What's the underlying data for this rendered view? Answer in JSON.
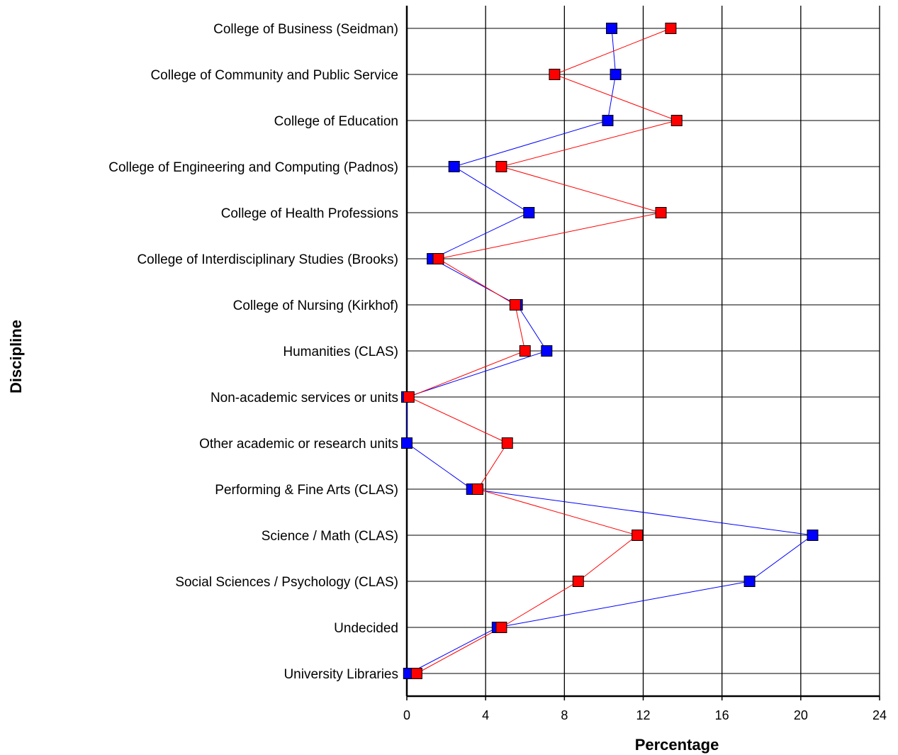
{
  "chart_data": {
    "type": "line",
    "orientation": "horizontal",
    "title": "",
    "xlabel": "Percentage",
    "ylabel": "Discipline",
    "xlim": [
      0,
      24
    ],
    "xticks": [
      0,
      4,
      8,
      12,
      16,
      20,
      24
    ],
    "grid": true,
    "legend": "none",
    "categories": [
      "College of Business (Seidman)",
      "College of Community and Public Service",
      "College of Education",
      "College of Engineering and Computing (Padnos)",
      "College of Health Professions",
      "College of Interdisciplinary Studies (Brooks)",
      "College of Nursing (Kirkhof)",
      "Humanities (CLAS)",
      "Non-academic services or units",
      "Other academic or research units",
      "Performing & Fine Arts (CLAS)",
      "Science / Math (CLAS)",
      "Social Sciences / Psychology (CLAS)",
      "Undecided",
      "University Libraries"
    ],
    "series": [
      {
        "color": "#0000ff",
        "values": [
          10.4,
          10.6,
          10.2,
          2.4,
          6.2,
          1.3,
          5.6,
          7.1,
          0.0,
          0.0,
          3.3,
          20.6,
          17.4,
          4.6,
          0.1
        ]
      },
      {
        "color": "#ff0000",
        "values": [
          13.4,
          7.5,
          13.7,
          4.8,
          12.9,
          1.6,
          5.5,
          6.0,
          0.1,
          5.1,
          3.6,
          11.7,
          8.7,
          4.8,
          0.5
        ]
      }
    ]
  }
}
